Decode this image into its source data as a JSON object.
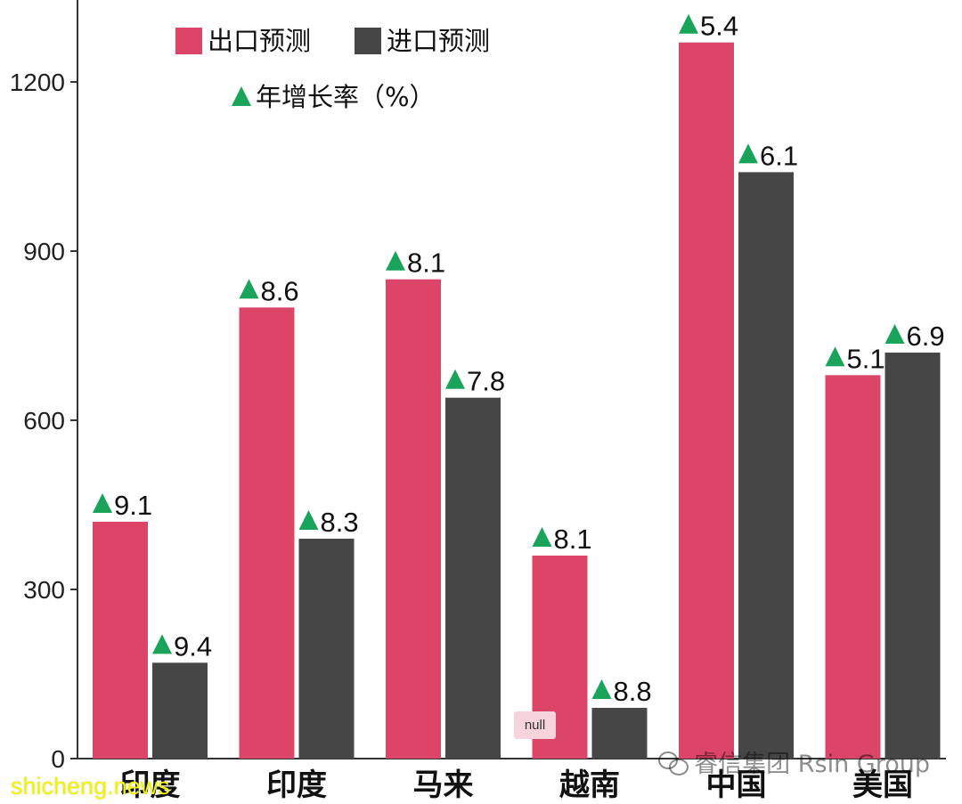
{
  "chart_data": {
    "type": "bar",
    "categories": [
      "印度",
      "印度",
      "马来",
      "越南",
      "中国",
      "美国"
    ],
    "series": [
      {
        "name": "出口预测",
        "color": "#dc4468",
        "values": [
          420,
          800,
          850,
          360,
          1270,
          680
        ],
        "growth": [
          "9.1",
          "8.6",
          "8.1",
          "8.1",
          "5.4",
          "5.1"
        ]
      },
      {
        "name": "进口预测",
        "color": "#464646",
        "values": [
          170,
          390,
          640,
          90,
          1040,
          720
        ],
        "growth": [
          "9.4",
          "8.3",
          "7.8",
          "8.8",
          "6.1",
          "6.9"
        ]
      }
    ],
    "ylim": [
      0,
      1340
    ],
    "yticks": [
      "0",
      "300",
      "600",
      "900",
      "1200"
    ],
    "ytick_values": [
      0,
      300,
      600,
      900,
      1200
    ],
    "growth_legend": "年增长率（%）",
    "growth_marker_color": "#1aa35a",
    "legend_placement": "top-left",
    "grid": false
  },
  "overlays": {
    "null_badge": "null",
    "watermark": "睿信集团 Rsin Group",
    "site": "shicheng.news"
  }
}
